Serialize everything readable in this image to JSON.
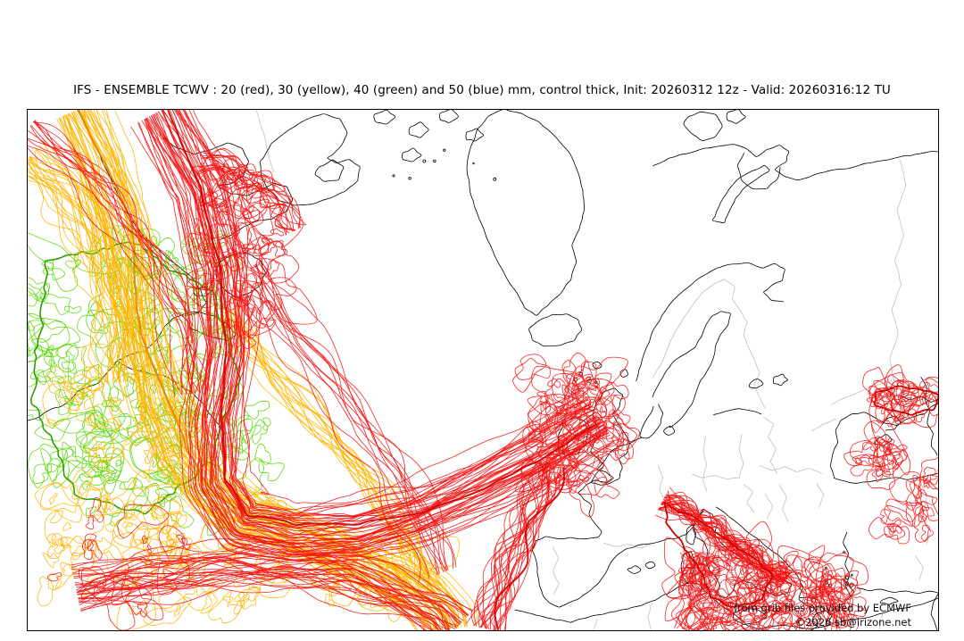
{
  "title": "IFS - ENSEMBLE TCWV : 20 (red), 30 (yellow), 40 (green) and 50 (blue) mm, control thick, Init: 20260312 12z - Valid: 20260316:12 TU",
  "product": {
    "model": "IFS",
    "type": "ENSEMBLE",
    "parameter": "TCWV",
    "unit": "mm",
    "control_style": "thick",
    "init": "20260312 12z",
    "valid": "20260316:12 TU"
  },
  "legend": {
    "thresholds": [
      {
        "value_mm": 20,
        "color_name": "red",
        "line_color": "#f41414",
        "control_color": "#cf0000"
      },
      {
        "value_mm": 30,
        "color_name": "yellow",
        "line_color": "#ffb400",
        "control_color": "#e18700"
      },
      {
        "value_mm": 40,
        "color_name": "green",
        "line_color": "#56d800",
        "control_color": "#2f9e00"
      },
      {
        "value_mm": 50,
        "color_name": "blue",
        "line_color": "#2222dd",
        "control_color": "#0000bb"
      }
    ]
  },
  "attribution": {
    "source": "from grib files provided by ECMWF",
    "copyright": "©2026 sb@irizone.net"
  },
  "map": {
    "region": "North Atlantic and Europe",
    "background": "#ffffff",
    "coastline_color": "#000000",
    "country_border_color": "#bfbfbf",
    "frame_color": "#000000"
  }
}
